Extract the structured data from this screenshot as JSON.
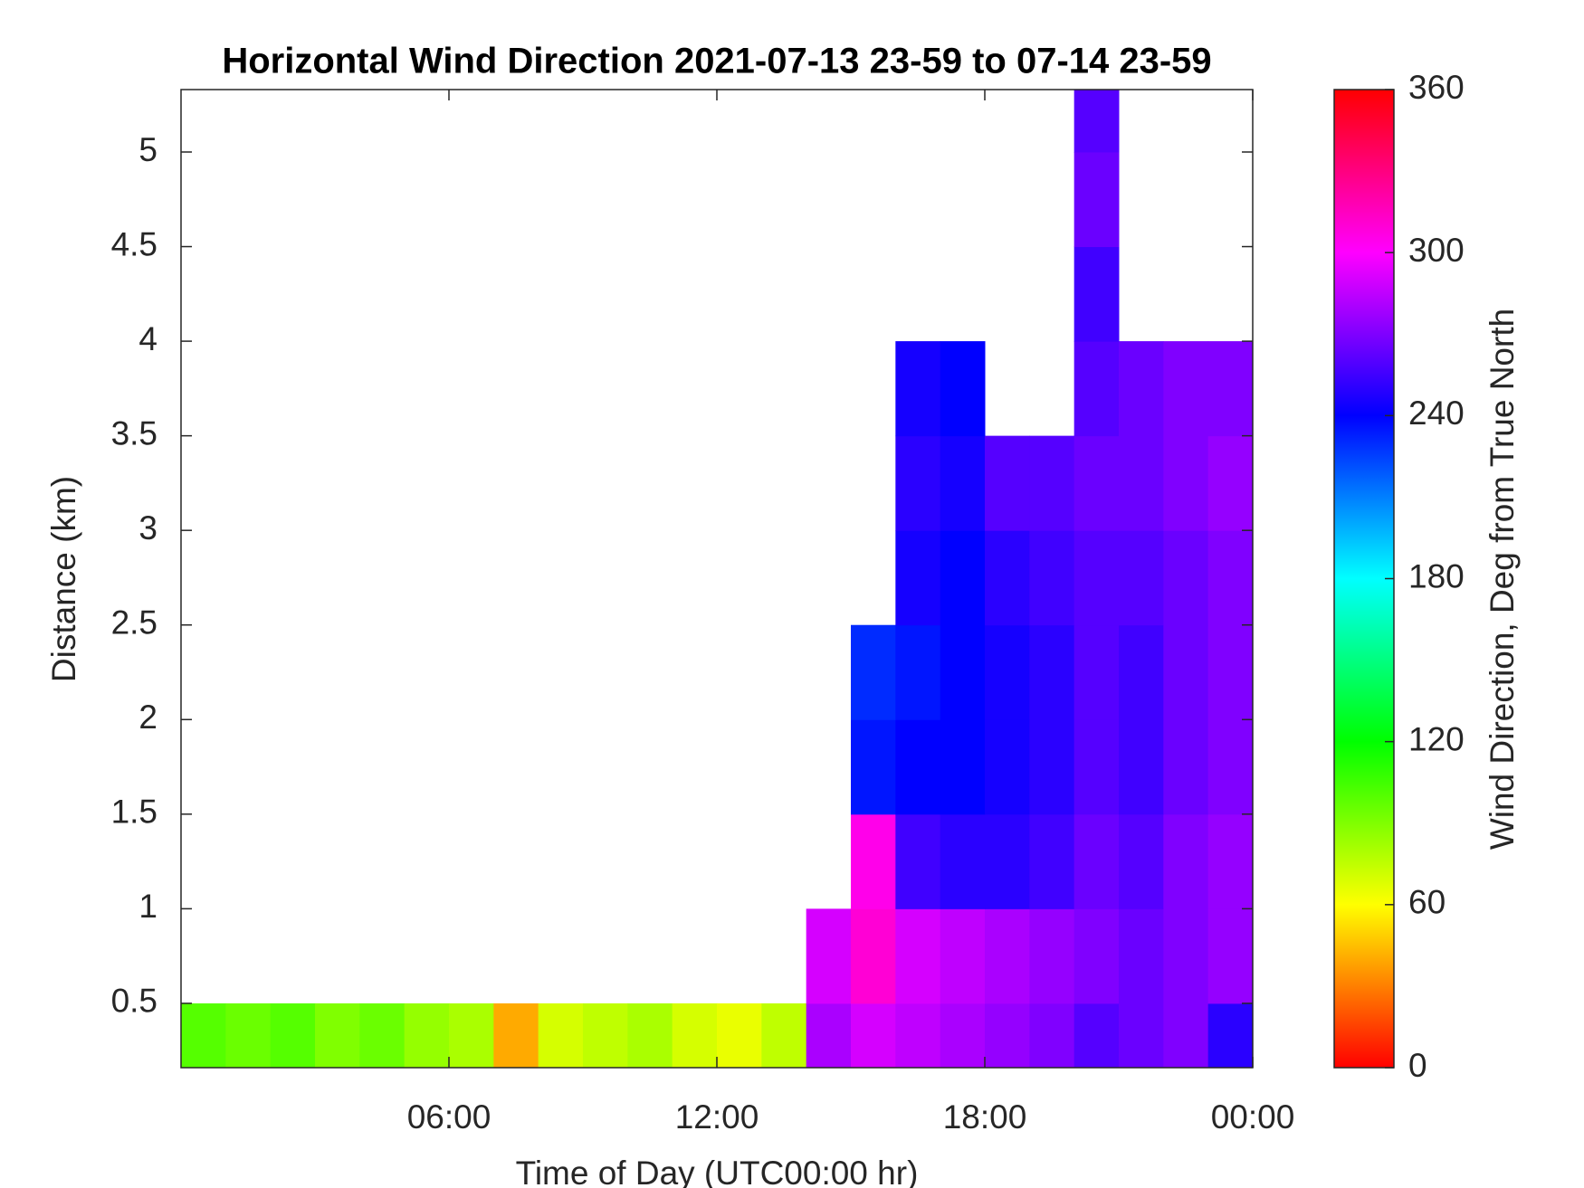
{
  "chart_data": {
    "type": "heatmap",
    "title": "Horizontal Wind Direction 2021-07-13 23-59 to 07-14 23-59",
    "x_label": "Time of Day (UTC00:00 hr)",
    "y_label": "Distance (km)",
    "colormap": "hsv",
    "xlim": [
      0,
      24
    ],
    "xticks": [
      {
        "value": 6,
        "label": "06:00"
      },
      {
        "value": 12,
        "label": "12:00"
      },
      {
        "value": 18,
        "label": "18:00"
      },
      {
        "value": 24,
        "label": "00:00"
      }
    ],
    "ylim": [
      0.16,
      5.33
    ],
    "yticks": [
      0.5,
      1,
      1.5,
      2,
      2.5,
      3,
      3.5,
      4,
      4.5,
      5
    ],
    "x": [
      0.5,
      1.5,
      2.5,
      3.5,
      4.5,
      5.5,
      6.5,
      7.5,
      8.5,
      9.5,
      10.5,
      11.5,
      12.5,
      13.5,
      14.5,
      15.5,
      16.5,
      17.5,
      18.5,
      19.5,
      20.5,
      21.5,
      22.5,
      23.5
    ],
    "y": [
      0.25,
      0.75,
      1.25,
      1.75,
      2.25,
      2.75,
      3.25,
      3.75,
      4.25,
      4.75,
      5.25
    ],
    "z": [
      [
        100,
        95,
        100,
        90,
        95,
        85,
        80,
        40,
        70,
        75,
        80,
        70,
        65,
        75,
        280,
        290,
        285,
        280,
        275,
        270,
        260,
        265,
        270,
        250
      ],
      [
        null,
        null,
        null,
        null,
        null,
        null,
        null,
        null,
        null,
        null,
        null,
        null,
        null,
        null,
        290,
        310,
        290,
        285,
        280,
        275,
        270,
        265,
        270,
        275
      ],
      [
        null,
        null,
        null,
        null,
        null,
        null,
        null,
        null,
        null,
        null,
        null,
        null,
        null,
        null,
        null,
        305,
        255,
        250,
        250,
        255,
        265,
        260,
        270,
        275
      ],
      [
        null,
        null,
        null,
        null,
        null,
        null,
        null,
        null,
        null,
        null,
        null,
        null,
        null,
        null,
        null,
        235,
        240,
        240,
        245,
        250,
        260,
        255,
        265,
        270
      ],
      [
        null,
        null,
        null,
        null,
        null,
        null,
        null,
        null,
        null,
        null,
        null,
        null,
        null,
        null,
        null,
        230,
        235,
        240,
        245,
        250,
        260,
        255,
        265,
        270
      ],
      [
        null,
        null,
        null,
        null,
        null,
        null,
        null,
        null,
        null,
        null,
        null,
        null,
        null,
        null,
        null,
        null,
        245,
        240,
        250,
        255,
        260,
        260,
        265,
        270
      ],
      [
        null,
        null,
        null,
        null,
        null,
        null,
        null,
        null,
        null,
        null,
        null,
        null,
        null,
        null,
        null,
        null,
        250,
        245,
        260,
        260,
        265,
        265,
        270,
        275
      ],
      [
        null,
        null,
        null,
        null,
        null,
        null,
        null,
        null,
        null,
        null,
        null,
        null,
        null,
        null,
        null,
        null,
        245,
        240,
        null,
        null,
        260,
        265,
        270,
        270
      ],
      [
        null,
        null,
        null,
        null,
        null,
        null,
        null,
        null,
        null,
        null,
        null,
        null,
        null,
        null,
        null,
        null,
        null,
        null,
        null,
        null,
        255,
        null,
        null,
        null
      ],
      [
        null,
        null,
        null,
        null,
        null,
        null,
        null,
        null,
        null,
        null,
        null,
        null,
        null,
        null,
        null,
        null,
        null,
        null,
        null,
        null,
        265,
        null,
        null,
        null
      ],
      [
        null,
        null,
        null,
        null,
        null,
        null,
        null,
        null,
        null,
        null,
        null,
        null,
        null,
        null,
        null,
        null,
        null,
        null,
        null,
        null,
        260,
        null,
        null,
        null
      ]
    ],
    "colorbar": {
      "label": "Wind Direction, Deg from True North",
      "lim": [
        0,
        360
      ],
      "ticks": [
        0,
        60,
        120,
        180,
        240,
        300,
        360
      ]
    }
  }
}
